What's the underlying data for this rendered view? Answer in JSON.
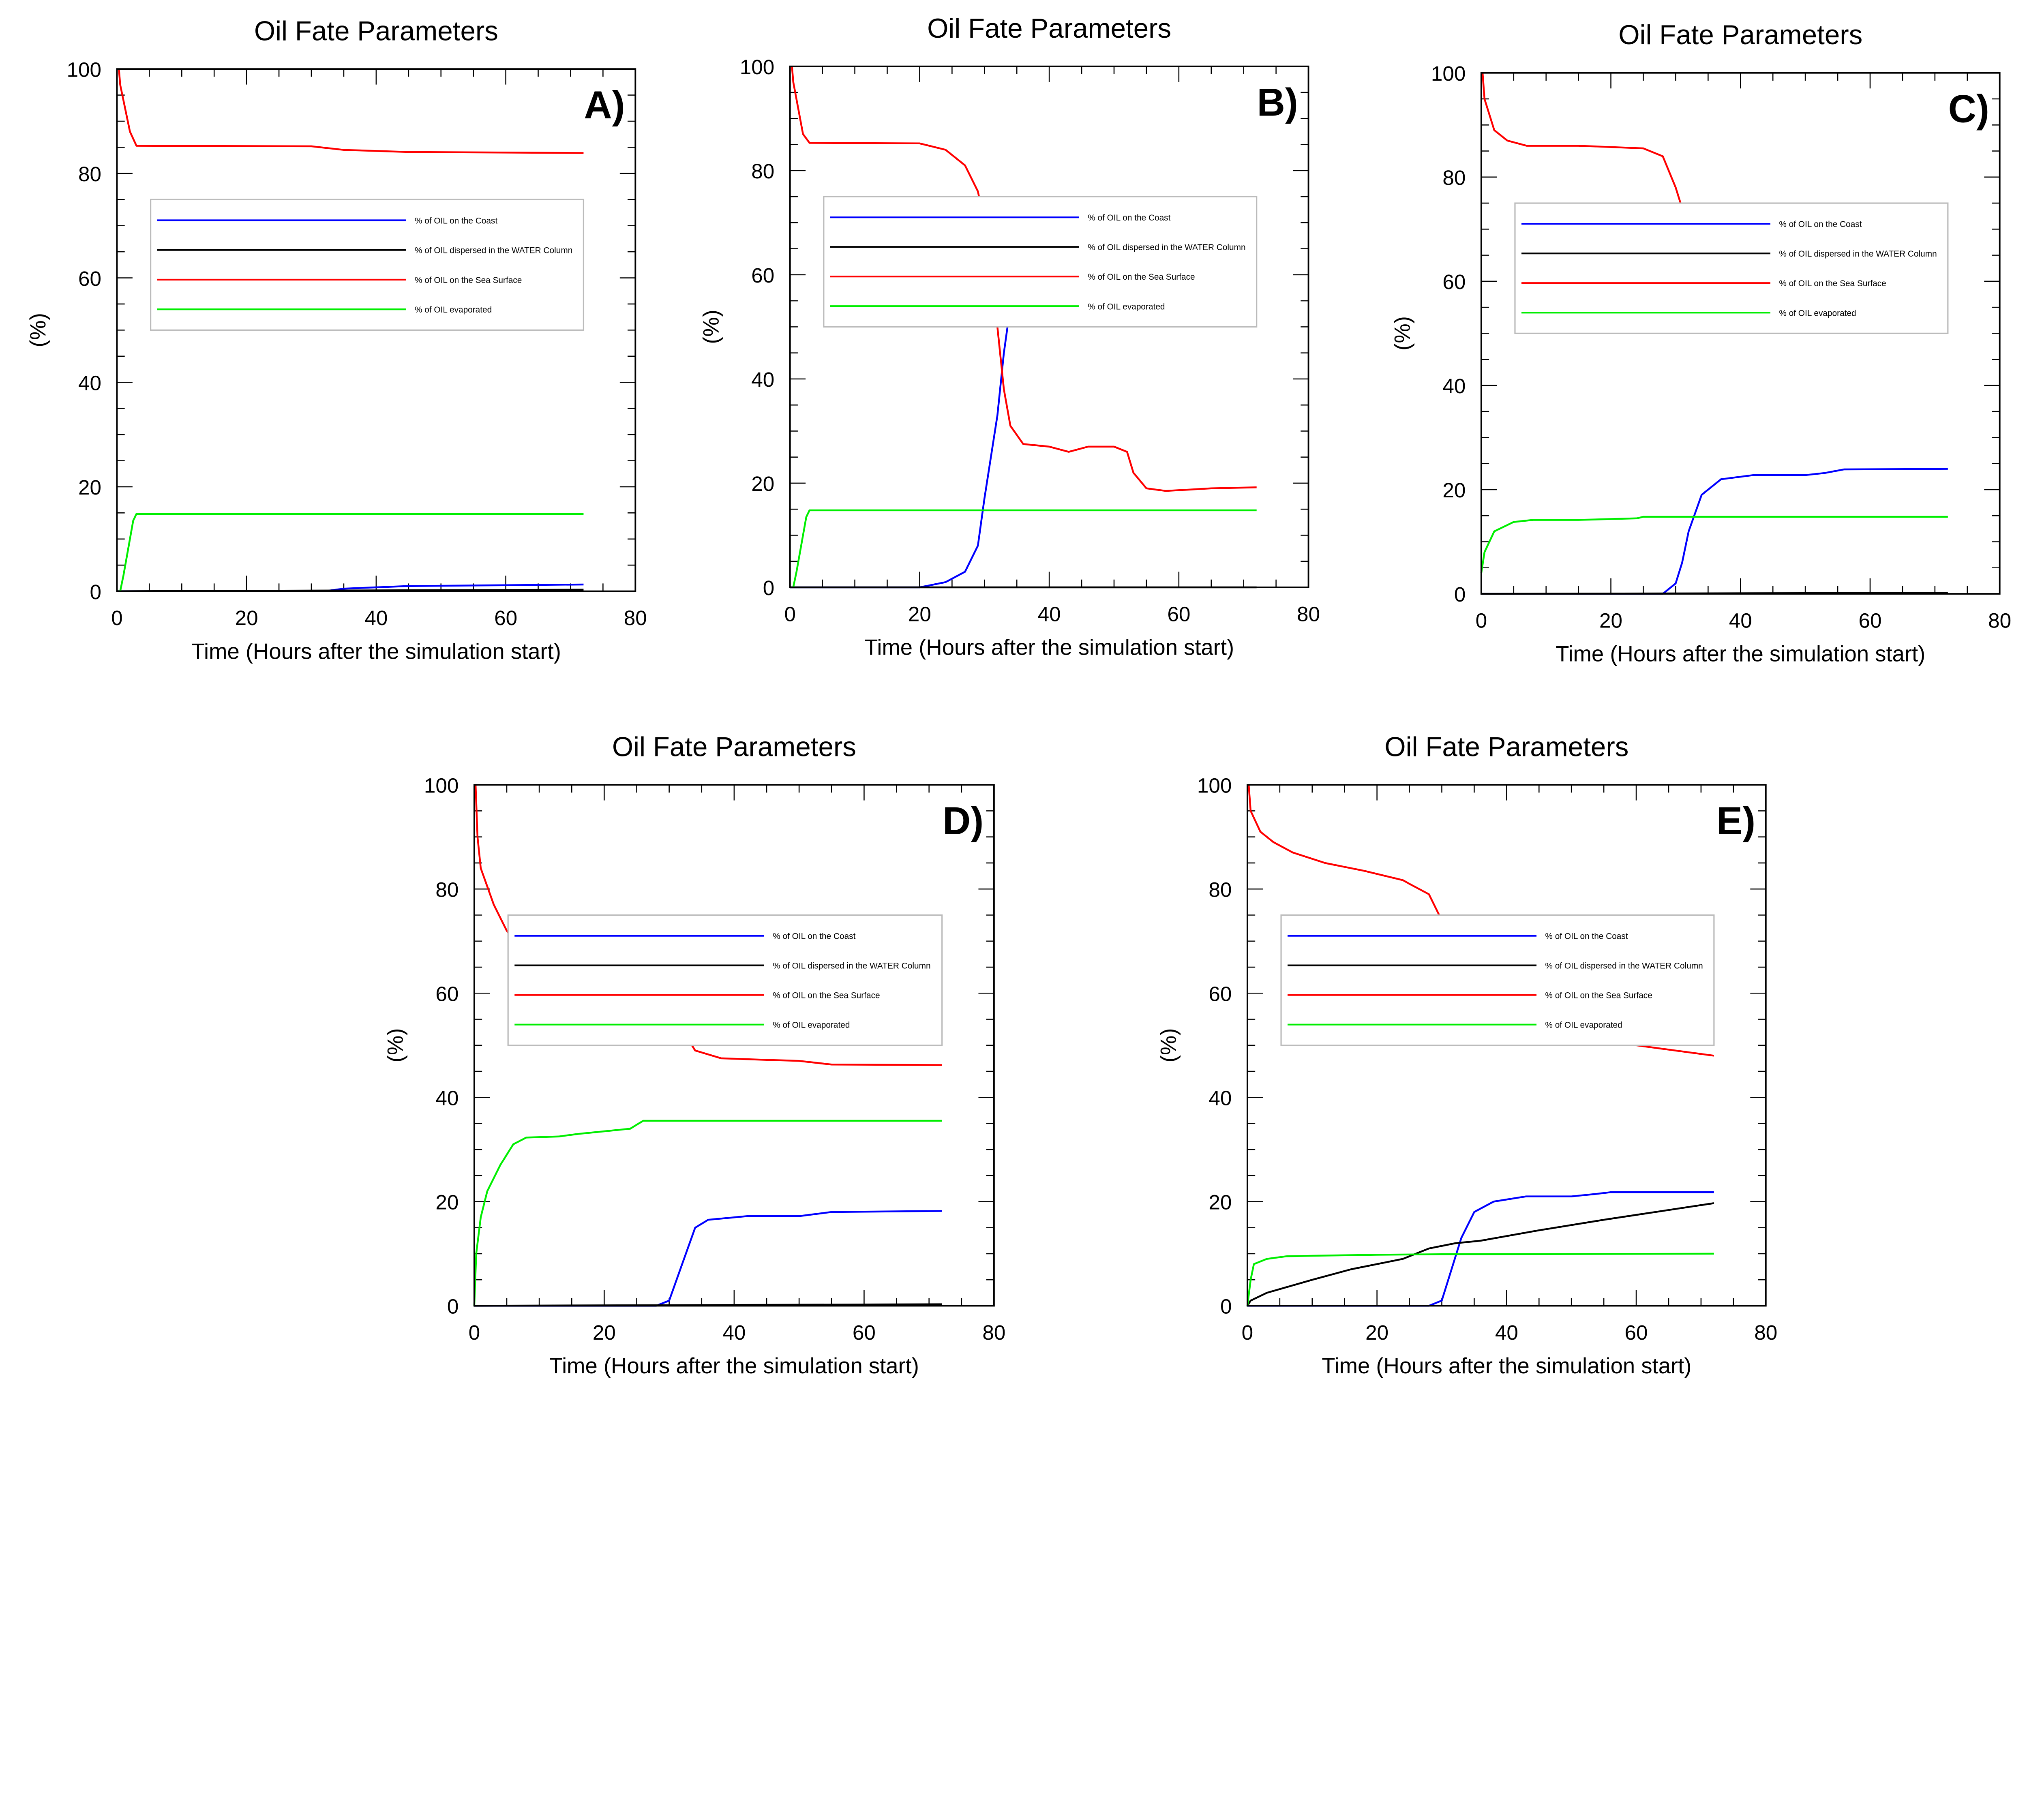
{
  "chart_data": [
    {
      "type": "line",
      "panel_label": "A)",
      "title": "Oil Fate Parameters",
      "xlabel": "Time (Hours after the simulation start)",
      "ylabel": "(%)",
      "xlim": [
        0,
        80
      ],
      "ylim": [
        0,
        100
      ],
      "xticks": [
        0,
        20,
        40,
        60,
        80
      ],
      "yticks": [
        0,
        20,
        40,
        60,
        80,
        100
      ],
      "legend": "center-top",
      "series": [
        {
          "name": "% of OIL on the Coast",
          "color": "#0000ff",
          "points": [
            [
              0,
              0
            ],
            [
              32,
              0
            ],
            [
              35,
              0.5
            ],
            [
              45,
              1
            ],
            [
              72,
              1.3
            ]
          ]
        },
        {
          "name": "% of OIL dispersed in the WATER Column",
          "color": "#000000",
          "points": [
            [
              0,
              0
            ],
            [
              72,
              0.3
            ]
          ]
        },
        {
          "name": "% of OIL on the Sea Surface",
          "color": "#ff0000",
          "points": [
            [
              0.3,
              100
            ],
            [
              0.5,
              97
            ],
            [
              2,
              88
            ],
            [
              3,
              85.3
            ],
            [
              30,
              85.2
            ],
            [
              35,
              84.5
            ],
            [
              45,
              84.1
            ],
            [
              72,
              83.9
            ]
          ]
        },
        {
          "name": "% of OIL evaporated",
          "color": "#00ee00",
          "points": [
            [
              0.5,
              0
            ],
            [
              1,
              3
            ],
            [
              2.5,
              13.5
            ],
            [
              3,
              14.8
            ],
            [
              72,
              14.8
            ]
          ]
        }
      ]
    },
    {
      "type": "line",
      "panel_label": "B)",
      "title": "Oil Fate Parameters",
      "xlabel": "Time (Hours after the simulation start)",
      "ylabel": "(%)",
      "xlim": [
        0,
        80
      ],
      "ylim": [
        0,
        100
      ],
      "xticks": [
        0,
        20,
        40,
        60,
        80
      ],
      "yticks": [
        0,
        20,
        40,
        60,
        80,
        100
      ],
      "legend": "center-top",
      "series": [
        {
          "name": "% of OIL on the Coast",
          "color": "#0000ff",
          "points": [
            [
              0,
              0
            ],
            [
              20,
              0
            ],
            [
              24,
              1
            ],
            [
              27,
              3
            ],
            [
              29,
              8
            ],
            [
              30,
              17
            ],
            [
              32,
              33
            ],
            [
              33,
              45
            ],
            [
              34,
              54
            ],
            [
              36,
              57.5
            ],
            [
              40,
              58.3
            ],
            [
              43,
              59.3
            ],
            [
              46,
              58
            ],
            [
              50,
              58.5
            ],
            [
              52,
              60
            ],
            [
              54,
              65
            ],
            [
              56,
              66.5
            ],
            [
              60,
              66.2
            ],
            [
              72,
              66
            ]
          ]
        },
        {
          "name": "% of OIL dispersed in the WATER Column",
          "color": "#000000",
          "points": [
            [
              0,
              0
            ],
            [
              72,
              0
            ]
          ]
        },
        {
          "name": "% of OIL on the Sea Surface",
          "color": "#ff0000",
          "points": [
            [
              0.3,
              100
            ],
            [
              0.5,
              97
            ],
            [
              2,
              87
            ],
            [
              3,
              85.3
            ],
            [
              20,
              85.2
            ],
            [
              24,
              84
            ],
            [
              27,
              81
            ],
            [
              29,
              76
            ],
            [
              31,
              64
            ],
            [
              32,
              50
            ],
            [
              33,
              38
            ],
            [
              34,
              31
            ],
            [
              36,
              27.5
            ],
            [
              40,
              27
            ],
            [
              43,
              26
            ],
            [
              46,
              27
            ],
            [
              50,
              27
            ],
            [
              52,
              26
            ],
            [
              53,
              22
            ],
            [
              55,
              19
            ],
            [
              58,
              18.5
            ],
            [
              65,
              19
            ],
            [
              72,
              19.2
            ]
          ]
        },
        {
          "name": "% of OIL evaporated",
          "color": "#00ee00",
          "points": [
            [
              0.5,
              0
            ],
            [
              1,
              3
            ],
            [
              2.5,
              13.5
            ],
            [
              3,
              14.8
            ],
            [
              72,
              14.8
            ]
          ]
        }
      ]
    },
    {
      "type": "line",
      "panel_label": "C)",
      "title": "Oil Fate Parameters",
      "xlabel": "Time (Hours after the simulation start)",
      "ylabel": "(%)",
      "xlim": [
        0,
        80
      ],
      "ylim": [
        0,
        100
      ],
      "xticks": [
        0,
        20,
        40,
        60,
        80
      ],
      "yticks": [
        0,
        20,
        40,
        60,
        80,
        100
      ],
      "legend": "center-top",
      "series": [
        {
          "name": "% of OIL on the Coast",
          "color": "#0000ff",
          "points": [
            [
              0,
              0
            ],
            [
              28,
              0
            ],
            [
              30,
              2
            ],
            [
              31,
              6
            ],
            [
              32,
              12
            ],
            [
              34,
              19
            ],
            [
              37,
              22
            ],
            [
              42,
              22.8
            ],
            [
              50,
              22.8
            ],
            [
              53,
              23.2
            ],
            [
              56,
              23.9
            ],
            [
              72,
              24
            ]
          ]
        },
        {
          "name": "% of OIL dispersed in the WATER Column",
          "color": "#000000",
          "points": [
            [
              0,
              0
            ],
            [
              72,
              0.2
            ]
          ]
        },
        {
          "name": "% of OIL on the Sea Surface",
          "color": "#ff0000",
          "points": [
            [
              0.2,
              100
            ],
            [
              0.5,
              95
            ],
            [
              2,
              89
            ],
            [
              4,
              87
            ],
            [
              7,
              86
            ],
            [
              15,
              86
            ],
            [
              25,
              85.5
            ],
            [
              28,
              84
            ],
            [
              30,
              78
            ],
            [
              32,
              70
            ],
            [
              34,
              65
            ],
            [
              36,
              63
            ],
            [
              40,
              62.3
            ],
            [
              45,
              62.3
            ],
            [
              50,
              62.5
            ],
            [
              55,
              61.5
            ],
            [
              60,
              61
            ],
            [
              72,
              61.1
            ]
          ]
        },
        {
          "name": "% of OIL evaporated",
          "color": "#00ee00",
          "points": [
            [
              0,
              4
            ],
            [
              0.5,
              8
            ],
            [
              2,
              12
            ],
            [
              5,
              13.8
            ],
            [
              8,
              14.2
            ],
            [
              15,
              14.2
            ],
            [
              24,
              14.5
            ],
            [
              25,
              14.8
            ],
            [
              72,
              14.8
            ]
          ]
        }
      ]
    },
    {
      "type": "line",
      "panel_label": "D)",
      "title": "Oil Fate Parameters",
      "xlabel": "Time (Hours after the simulation start)",
      "ylabel": "(%)",
      "xlim": [
        0,
        80
      ],
      "ylim": [
        0,
        100
      ],
      "xticks": [
        0,
        20,
        40,
        60,
        80
      ],
      "yticks": [
        0,
        20,
        40,
        60,
        80,
        100
      ],
      "legend": "center-top",
      "series": [
        {
          "name": "% of OIL on the Coast",
          "color": "#0000ff",
          "points": [
            [
              0,
              0
            ],
            [
              28,
              0
            ],
            [
              30,
              1
            ],
            [
              32,
              8
            ],
            [
              34,
              15
            ],
            [
              36,
              16.5
            ],
            [
              42,
              17.2
            ],
            [
              50,
              17.2
            ],
            [
              55,
              18
            ],
            [
              72,
              18.2
            ]
          ]
        },
        {
          "name": "% of OIL dispersed in the WATER Column",
          "color": "#000000",
          "points": [
            [
              0,
              0
            ],
            [
              72,
              0.3
            ]
          ]
        },
        {
          "name": "% of OIL on the Sea Surface",
          "color": "#ff0000",
          "points": [
            [
              0.2,
              100
            ],
            [
              0.5,
              90
            ],
            [
              1,
              84
            ],
            [
              3,
              77
            ],
            [
              5,
              72
            ],
            [
              7,
              68.5
            ],
            [
              10,
              67.5
            ],
            [
              13,
              67.3
            ],
            [
              18,
              66.5
            ],
            [
              24,
              65.5
            ],
            [
              26,
              64.5
            ],
            [
              28,
              63.5
            ],
            [
              30,
              60
            ],
            [
              32,
              53
            ],
            [
              34,
              49
            ],
            [
              38,
              47.5
            ],
            [
              45,
              47.2
            ],
            [
              50,
              47
            ],
            [
              55,
              46.3
            ],
            [
              72,
              46.2
            ]
          ]
        },
        {
          "name": "% of OIL evaporated",
          "color": "#00ee00",
          "points": [
            [
              0,
              0
            ],
            [
              0.3,
              10
            ],
            [
              1,
              17
            ],
            [
              2,
              22
            ],
            [
              4,
              27
            ],
            [
              6,
              31
            ],
            [
              8,
              32.3
            ],
            [
              13,
              32.5
            ],
            [
              16,
              33
            ],
            [
              20,
              33.5
            ],
            [
              24,
              34
            ],
            [
              26,
              35.5
            ],
            [
              72,
              35.5
            ]
          ]
        }
      ]
    },
    {
      "type": "line",
      "panel_label": "E)",
      "title": "Oil Fate Parameters",
      "xlabel": "Time (Hours after the simulation start)",
      "ylabel": "(%)",
      "xlim": [
        0,
        80
      ],
      "ylim": [
        0,
        100
      ],
      "xticks": [
        0,
        20,
        40,
        60,
        80
      ],
      "yticks": [
        0,
        20,
        40,
        60,
        80,
        100
      ],
      "legend": "center-top",
      "series": [
        {
          "name": "% of OIL on the Coast",
          "color": "#0000ff",
          "points": [
            [
              0,
              0
            ],
            [
              28,
              0
            ],
            [
              30,
              1
            ],
            [
              31,
              5
            ],
            [
              33,
              13
            ],
            [
              35,
              18
            ],
            [
              38,
              20
            ],
            [
              43,
              21
            ],
            [
              50,
              21
            ],
            [
              54,
              21.5
            ],
            [
              56,
              21.8
            ],
            [
              72,
              21.8
            ]
          ]
        },
        {
          "name": "% of OIL dispersed in the WATER Column",
          "color": "#000000",
          "points": [
            [
              0,
              0
            ],
            [
              0.5,
              1
            ],
            [
              3,
              2.5
            ],
            [
              10,
              5
            ],
            [
              16,
              7
            ],
            [
              24,
              9
            ],
            [
              28,
              11
            ],
            [
              32,
              12
            ],
            [
              36,
              12.5
            ],
            [
              45,
              14.5
            ],
            [
              55,
              16.5
            ],
            [
              72,
              19.7
            ]
          ]
        },
        {
          "name": "% of OIL on the Sea Surface",
          "color": "#ff0000",
          "points": [
            [
              0.2,
              100
            ],
            [
              0.5,
              95
            ],
            [
              2,
              91
            ],
            [
              4,
              89
            ],
            [
              7,
              87
            ],
            [
              12,
              85
            ],
            [
              18,
              83.5
            ],
            [
              24,
              81.7
            ],
            [
              25,
              81
            ],
            [
              28,
              79
            ],
            [
              30,
              74
            ],
            [
              32,
              65
            ],
            [
              34,
              59
            ],
            [
              37,
              56.5
            ],
            [
              42,
              54.5
            ],
            [
              50,
              52.5
            ],
            [
              55,
              51
            ],
            [
              60,
              50
            ],
            [
              72,
              48
            ]
          ]
        },
        {
          "name": "% of OIL evaporated",
          "color": "#00ee00",
          "points": [
            [
              0,
              0
            ],
            [
              0.5,
              5
            ],
            [
              1,
              8
            ],
            [
              3,
              9
            ],
            [
              6,
              9.5
            ],
            [
              10,
              9.6
            ],
            [
              20,
              9.8
            ],
            [
              30,
              9.9
            ],
            [
              72,
              10
            ]
          ]
        }
      ]
    }
  ]
}
